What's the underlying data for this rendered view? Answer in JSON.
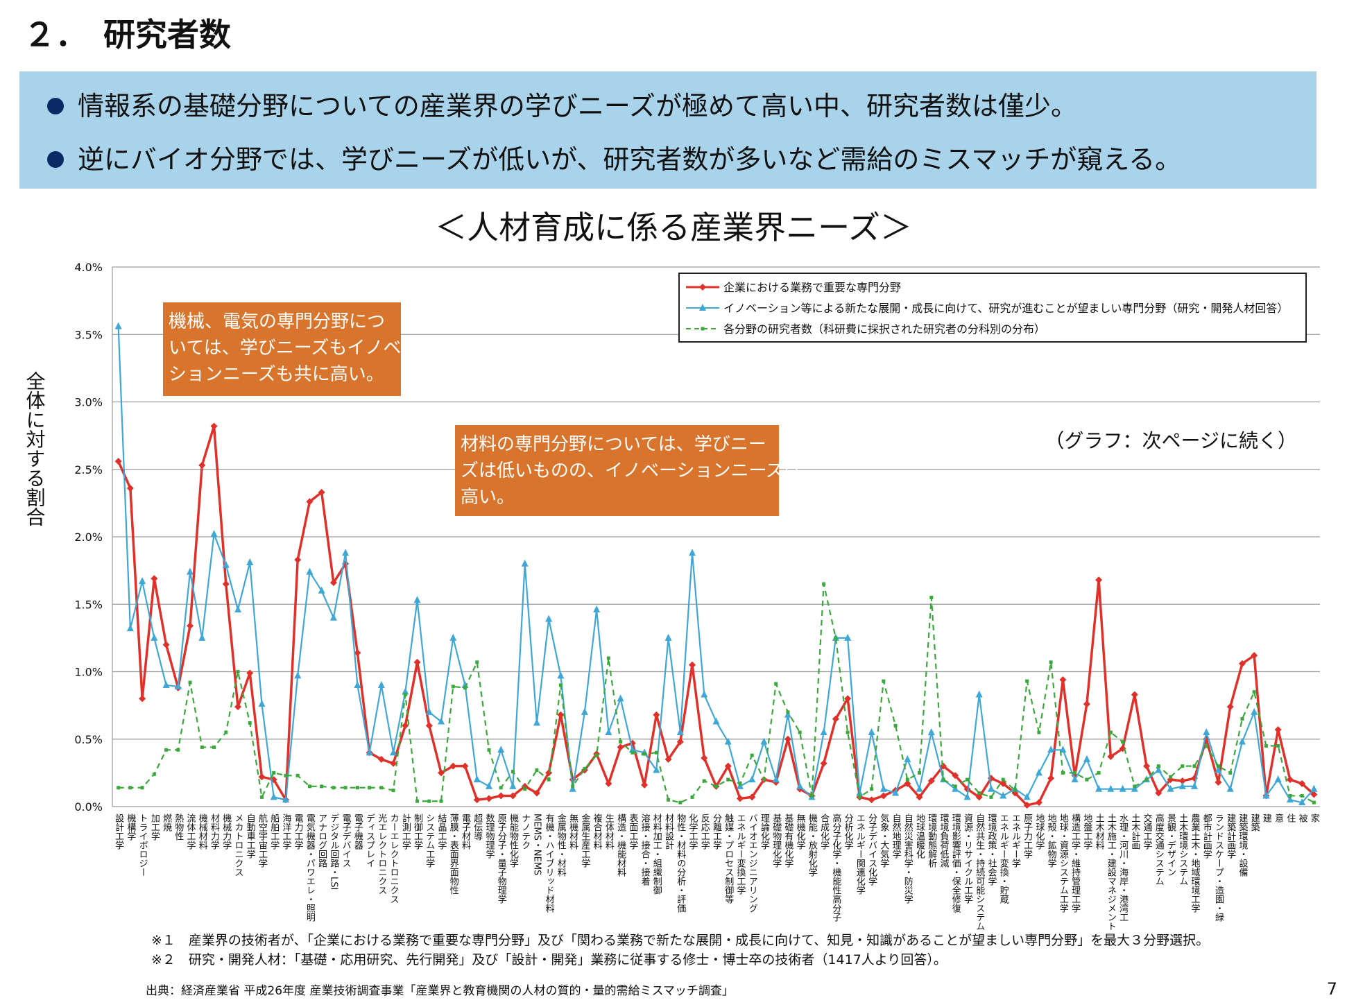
{
  "header": {
    "title": "２．　研究者数"
  },
  "banner": {
    "bullets": [
      "情報系の基礎分野についての産業界の学びニーズが極めて高い中、研究者数は僅少。",
      "逆にバイオ分野では、学びニーズが低いが、研究者数が多いなど需給のミスマッチが窺える。"
    ]
  },
  "chart_data": {
    "type": "line",
    "title": "＜人材育成に係る産業界ニーズ＞",
    "y_label": "全体に対する割合",
    "note": "（グラフ：次ページに続く）",
    "annotations": [
      {
        "lines": [
          "機械、電気の専門分野につ",
          "いては、学びニーズもイノベー",
          "ションニーズも共に高い。"
        ],
        "color": "#d8742b"
      },
      {
        "lines": [
          "材料の専門分野については、学びニー",
          "ズは低いものの、イノベーションニーズは",
          "高い。"
        ],
        "color": "#d8742b"
      }
    ],
    "categories": [
      "設計工学",
      "機構学",
      "トライボロジー",
      "加工学",
      "燃焼",
      "熱物性",
      "流体工学",
      "機械材料",
      "材料力学",
      "機械力学",
      "メカトロニクス",
      "自動車工学",
      "航空宇宙工学",
      "船舶工学",
      "海洋工学",
      "電力工学",
      "電気機器・パワエレ・照明",
      "アナログ回路",
      "デジタル回路・LSI",
      "電子デバイス",
      "電子機器",
      "ディスプレイ",
      "光エレクトロニクス",
      "カーエレクトロニクス",
      "計測工学",
      "制御工学",
      "システム工学",
      "結晶工学",
      "薄膜・表面界面物性",
      "電子材料",
      "超伝導",
      "数理物理学",
      "原子分子・量子物理学",
      "機能物性化学",
      "ナノテク",
      "MEMS・NEMS",
      "有機・ハイブリッド材料",
      "金属物性・材料",
      "無機材料",
      "金属生産工学",
      "複合材料",
      "生体材料",
      "構造・機能材料",
      "表面工学",
      "溶接・接合・接着",
      "材料加工・組織制御",
      "材料設計",
      "物性・材料の分析・評価",
      "化学工学",
      "反応工学",
      "分離工学",
      "触媒・プロセス制御等",
      "エネルギー変換工学",
      "バイオエンジニアリング",
      "理論化学",
      "基礎物理化学",
      "基礎有機化学",
      "無機化学",
      "機能・放射化学",
      "合成化学",
      "高分子化学・機能性高分子",
      "分析化学",
      "エネルギー関連化学",
      "分子デバイス化学",
      "気象・大気学",
      "自然地理学",
      "自然災害科学・防災学",
      "地球温暖化",
      "環境動態解析",
      "環境負荷低減",
      "環境影響評価・保全修復",
      "資源・リサイクル工学",
      "自然共生・持続可能システム",
      "環境政策・社会学",
      "エネルギー変換・貯蔵",
      "エネルギー学",
      "原子力工学",
      "地球化学",
      "地殻・鉱物学",
      "地球・資源システム工学",
      "構造工学・維持管理工学",
      "地盤工学",
      "土木材料",
      "土木施工・建設マネジメント",
      "水理・河川・海岸・港湾工",
      "土木計画",
      "交通工学",
      "高度交通システム",
      "景観・デザイン",
      "土木環境システム",
      "農業土木・地域環境工学",
      "都市計画学",
      "ランドスケープ・造園・緑",
      "建築計画学",
      "建築環境・設備",
      "建築",
      "建",
      "意",
      "住",
      "被",
      "家"
    ],
    "series": [
      {
        "name": "企業における業務で重要な専門分野",
        "color": "#e0302a",
        "marker": "diamond",
        "line_style": "solid",
        "values": [
          2.56,
          2.36,
          0.8,
          1.69,
          1.2,
          0.88,
          1.34,
          2.53,
          2.82,
          1.65,
          0.74,
          0.99,
          0.22,
          0.2,
          0.05,
          1.83,
          2.26,
          2.33,
          1.66,
          1.8,
          1.14,
          0.4,
          0.35,
          0.32,
          0.6,
          1.07,
          0.6,
          0.25,
          0.3,
          0.3,
          0.05,
          0.06,
          0.08,
          0.08,
          0.15,
          0.1,
          0.25,
          0.68,
          0.2,
          0.27,
          0.39,
          0.17,
          0.44,
          0.47,
          0.16,
          0.68,
          0.35,
          0.48,
          1.05,
          0.36,
          0.15,
          0.3,
          0.06,
          0.07,
          0.2,
          0.18,
          0.5,
          0.13,
          0.08,
          0.32,
          0.65,
          0.8,
          0.07,
          0.05,
          0.08,
          0.12,
          0.17,
          0.07,
          0.19,
          0.3,
          0.23,
          0.13,
          0.07,
          0.21,
          0.17,
          0.1,
          0.01,
          0.03,
          0.21,
          0.94,
          0.23,
          0.76,
          1.68,
          0.37,
          0.43,
          0.83,
          0.3,
          0.1,
          0.2,
          0.19,
          0.21,
          0.5,
          0.18,
          0.74,
          1.06,
          1.12,
          0.08,
          0.57,
          0.2,
          0.17,
          0.09
        ]
      },
      {
        "name": "イノベーション等による新たな展開・成長に向けて、研究が進むことが望ましい専門分野（研究・開発人材回答）",
        "color": "#3fa7d6",
        "marker": "triangle",
        "line_style": "solid",
        "values": [
          3.56,
          1.32,
          1.67,
          1.25,
          0.9,
          0.89,
          1.74,
          1.25,
          2.02,
          1.79,
          1.46,
          1.81,
          0.76,
          0.07,
          0.05,
          0.97,
          1.74,
          1.6,
          1.4,
          1.88,
          0.9,
          0.4,
          0.9,
          0.4,
          0.85,
          1.53,
          0.7,
          0.63,
          1.25,
          0.9,
          0.2,
          0.15,
          0.42,
          0.15,
          1.8,
          0.62,
          1.39,
          0.97,
          0.13,
          0.7,
          1.46,
          0.55,
          0.8,
          0.42,
          0.4,
          0.27,
          1.25,
          0.55,
          1.88,
          0.83,
          0.63,
          0.48,
          0.15,
          0.2,
          0.48,
          0.2,
          0.68,
          0.15,
          0.07,
          0.55,
          1.25,
          1.25,
          0.1,
          0.55,
          0.13,
          0.1,
          0.35,
          0.13,
          0.55,
          0.2,
          0.13,
          0.07,
          0.83,
          0.13,
          0.08,
          0.13,
          0.07,
          0.25,
          0.42,
          0.42,
          0.2,
          0.35,
          0.13,
          0.13,
          0.13,
          0.13,
          0.2,
          0.27,
          0.13,
          0.15,
          0.15,
          0.55,
          0.27,
          0.13,
          0.48,
          0.7,
          0.08,
          0.2,
          0.05,
          0.03,
          0.13
        ]
      },
      {
        "name": "各分野の研究者数（科研費に採択された研究者の分科別の分布）",
        "color": "#3aa83a",
        "marker": "square",
        "line_style": "dashed",
        "values": [
          0.14,
          0.14,
          0.14,
          0.24,
          0.42,
          0.42,
          0.92,
          0.44,
          0.44,
          0.55,
          1.0,
          0.62,
          0.07,
          0.25,
          0.23,
          0.23,
          0.15,
          0.15,
          0.14,
          0.14,
          0.14,
          0.14,
          0.14,
          0.12,
          0.83,
          0.04,
          0.04,
          0.04,
          0.89,
          0.88,
          1.07,
          0.42,
          0.14,
          0.26,
          0.13,
          0.27,
          0.2,
          0.9,
          0.15,
          0.28,
          0.38,
          1.1,
          0.48,
          0.4,
          0.39,
          0.4,
          0.05,
          0.03,
          0.07,
          0.19,
          0.15,
          0.2,
          0.17,
          0.38,
          0.2,
          0.91,
          0.7,
          0.55,
          0.08,
          1.65,
          1.25,
          0.55,
          0.07,
          0.13,
          0.93,
          0.6,
          0.2,
          0.25,
          1.55,
          0.2,
          0.15,
          0.2,
          0.1,
          0.07,
          0.2,
          0.12,
          0.93,
          0.55,
          1.07,
          0.25,
          0.25,
          0.2,
          0.25,
          0.55,
          0.48,
          0.15,
          0.2,
          0.3,
          0.22,
          0.3,
          0.3,
          0.45,
          0.3,
          0.25,
          0.65,
          0.85,
          0.45,
          0.45,
          0.08,
          0.08,
          0.03
        ]
      }
    ],
    "ylim": [
      0,
      4
    ],
    "yticks": [
      {
        "value": 0,
        "label": "0.0%"
      },
      {
        "value": 0.5,
        "label": "0.5%"
      },
      {
        "value": 1,
        "label": "1.0%"
      },
      {
        "value": 1.5,
        "label": "1.5%"
      },
      {
        "value": 2,
        "label": "2.0%"
      },
      {
        "value": 2.5,
        "label": "2.5%"
      },
      {
        "value": 3,
        "label": "3.0%"
      },
      {
        "value": 3.5,
        "label": "3.5%"
      },
      {
        "value": 4,
        "label": "4.0%"
      }
    ],
    "grid": true,
    "legend": "top-right"
  },
  "footnotes": [
    "※１　産業界の技術者が、「企業における業務で重要な専門分野」及び「関わる業務で新たな展開・成長に向けて、知見・知識があることが望ましい専門分野」を最大３分野選択。",
    "※２　研究・開発人材：「基礎・応用研究、先行開発」及び「設計・開発」業務に従事する修士・博士卒の技術者（1417人より回答）。"
  ],
  "source": "出典：経済産業省 平成26年度 産業技術調査事業「産業界と教育機関の人材の質的・量的需給ミスマッチ調査」",
  "page_number": "7"
}
